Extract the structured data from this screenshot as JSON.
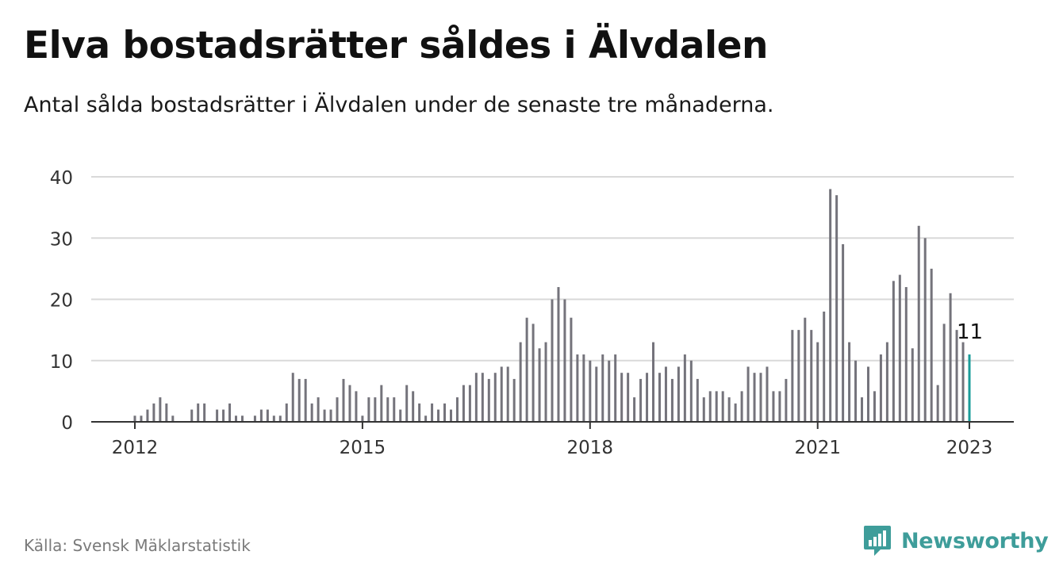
{
  "header": {
    "title": "Elva bostadsrätter såldes i Älvdalen",
    "subtitle": "Antal sålda bostadsrätter i Älvdalen under de senaste tre månaderna."
  },
  "footer": {
    "source": "Källa: Svensk Mäklarstatistik",
    "brand": "Newsworthy"
  },
  "colors": {
    "bar": "#74737b",
    "highlight": "#1a9c9a",
    "grid": "#d9d9d9",
    "axis": "#333333",
    "brand": "#3e9d9a"
  },
  "chart_data": {
    "type": "bar",
    "start": "2012-01",
    "frequency": "monthly",
    "ylim": [
      0,
      40
    ],
    "yticks": [
      0,
      10,
      20,
      30,
      40
    ],
    "xticks": [
      "2012",
      "2015",
      "2018",
      "2021",
      "2023"
    ],
    "grid": true,
    "annotation": {
      "text": "11",
      "index": 132
    },
    "values": [
      1,
      1,
      2,
      3,
      4,
      3,
      1,
      0,
      0,
      2,
      3,
      3,
      0,
      2,
      2,
      3,
      1,
      1,
      0,
      1,
      2,
      2,
      1,
      1,
      3,
      8,
      7,
      7,
      3,
      4,
      2,
      2,
      4,
      7,
      6,
      5,
      1,
      4,
      4,
      6,
      4,
      4,
      2,
      6,
      5,
      3,
      1,
      3,
      2,
      3,
      2,
      4,
      6,
      6,
      8,
      8,
      7,
      8,
      9,
      9,
      7,
      13,
      17,
      16,
      12,
      13,
      20,
      22,
      20,
      17,
      11,
      11,
      10,
      9,
      11,
      10,
      11,
      8,
      8,
      4,
      7,
      8,
      13,
      8,
      9,
      7,
      9,
      11,
      10,
      7,
      4,
      5,
      5,
      5,
      4,
      3,
      5,
      9,
      8,
      8,
      9,
      5,
      5,
      7,
      15,
      15,
      17,
      15,
      13,
      18,
      38,
      37,
      29,
      13,
      10,
      4,
      9,
      5,
      11,
      13,
      23,
      24,
      22,
      12,
      32,
      30,
      25,
      6,
      16,
      21,
      15,
      13,
      11
    ]
  }
}
